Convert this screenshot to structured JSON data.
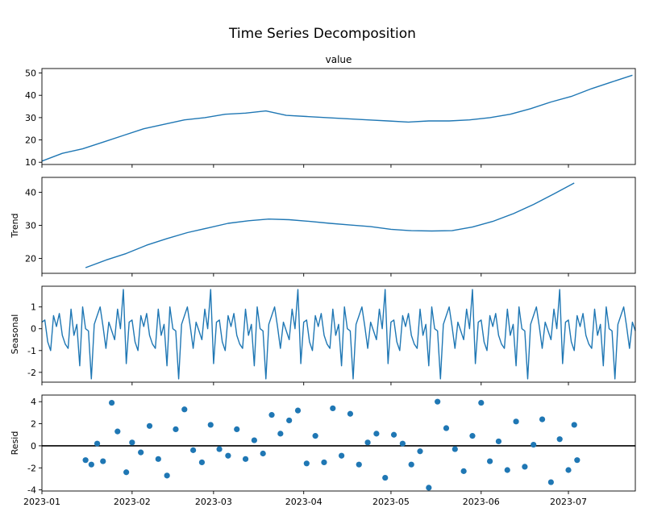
{
  "chart_data": {
    "type": "line",
    "title": "Time Series Decomposition",
    "x_type": "date",
    "x_range": [
      "2023-01-01",
      "2023-07-24"
    ],
    "x_ticks": [
      "2023-01",
      "2023-02",
      "2023-03",
      "2023-04",
      "2023-05",
      "2023-06",
      "2023-07"
    ],
    "colors": {
      "series": "#1f77b4",
      "zero_line": "#000000"
    },
    "panels": [
      {
        "name": "observed",
        "title": "value",
        "ylabel": "",
        "kind": "line",
        "ylim": [
          9,
          52
        ],
        "yticks": [
          10,
          20,
          30,
          40,
          50
        ],
        "x": [
          "2023-01-01",
          "2023-01-08",
          "2023-01-15",
          "2023-01-22",
          "2023-01-29",
          "2023-02-05",
          "2023-02-12",
          "2023-02-19",
          "2023-02-26",
          "2023-03-05",
          "2023-03-12",
          "2023-03-19",
          "2023-03-26",
          "2023-04-02",
          "2023-04-09",
          "2023-04-16",
          "2023-04-23",
          "2023-04-30",
          "2023-05-07",
          "2023-05-14",
          "2023-05-21",
          "2023-05-28",
          "2023-06-04",
          "2023-06-11",
          "2023-06-18",
          "2023-06-25",
          "2023-07-02",
          "2023-07-09",
          "2023-07-16",
          "2023-07-23"
        ],
        "y": [
          10.5,
          14,
          16,
          19,
          22,
          25,
          27,
          29,
          30,
          31.5,
          32,
          33,
          31,
          30.5,
          30,
          29.5,
          29,
          28.5,
          28,
          28.5,
          28.5,
          29,
          30,
          31.5,
          34,
          37,
          39.5,
          43,
          46,
          49
        ]
      },
      {
        "name": "trend",
        "title": "",
        "ylabel": "Trend",
        "kind": "line",
        "ylim": [
          15.5,
          44.5
        ],
        "yticks": [
          20,
          30,
          40
        ],
        "x": [
          "2023-01-16",
          "2023-01-23",
          "2023-01-30",
          "2023-02-06",
          "2023-02-13",
          "2023-02-20",
          "2023-02-27",
          "2023-03-06",
          "2023-03-13",
          "2023-03-20",
          "2023-03-27",
          "2023-04-03",
          "2023-04-10",
          "2023-04-17",
          "2023-04-24",
          "2023-05-01",
          "2023-05-08",
          "2023-05-15",
          "2023-05-22",
          "2023-05-29",
          "2023-06-05",
          "2023-06-12",
          "2023-06-19",
          "2023-06-26",
          "2023-07-03"
        ],
        "y": [
          17.2,
          19.5,
          21.5,
          24,
          26,
          27.8,
          29.2,
          30.6,
          31.4,
          31.9,
          31.7,
          31.2,
          30.6,
          30.1,
          29.6,
          28.8,
          28.4,
          28.3,
          28.4,
          29.5,
          31.2,
          33.5,
          36.3,
          39.5,
          42.8
        ]
      },
      {
        "name": "seasonal",
        "title": "",
        "ylabel": "Seasonal",
        "kind": "line",
        "ylim": [
          -2.45,
          1.95
        ],
        "yticks": [
          -2,
          -1,
          0,
          1
        ],
        "x": [
          "2023-01-01",
          "2023-01-02",
          "2023-01-03",
          "2023-01-04",
          "2023-01-05",
          "2023-01-06",
          "2023-01-07",
          "2023-01-08",
          "2023-01-09",
          "2023-01-10",
          "2023-01-11",
          "2023-01-12",
          "2023-01-13",
          "2023-01-14",
          "2023-01-15",
          "2023-01-16",
          "2023-01-17",
          "2023-01-18",
          "2023-01-19",
          "2023-01-20",
          "2023-01-21",
          "2023-01-22",
          "2023-01-23",
          "2023-01-24",
          "2023-01-25",
          "2023-01-26",
          "2023-01-27",
          "2023-01-28",
          "2023-01-29",
          "2023-01-30"
        ],
        "y": [
          0.3,
          0.4,
          -0.6,
          -1.0,
          0.6,
          0.1,
          0.7,
          -0.3,
          -0.7,
          -0.9,
          0.9,
          -0.3,
          0.2,
          -1.7,
          1.0,
          0.0,
          -0.1,
          -2.3,
          0.2,
          0.6,
          1.0,
          0.1,
          -0.9,
          0.3,
          -0.1,
          -0.5,
          0.9,
          0.0,
          1.8,
          -1.6
        ]
      },
      {
        "name": "resid",
        "title": "",
        "ylabel": "Resid",
        "kind": "scatter",
        "ylim": [
          -4.1,
          4.6
        ],
        "yticks": [
          -4,
          -2,
          0,
          2,
          4
        ],
        "zero_line": true,
        "x": [
          "2023-01-16",
          "2023-01-18",
          "2023-01-20",
          "2023-01-22",
          "2023-01-25",
          "2023-01-27",
          "2023-01-30",
          "2023-02-01",
          "2023-02-04",
          "2023-02-07",
          "2023-02-10",
          "2023-02-13",
          "2023-02-16",
          "2023-02-19",
          "2023-02-22",
          "2023-02-25",
          "2023-02-28",
          "2023-03-03",
          "2023-03-06",
          "2023-03-09",
          "2023-03-12",
          "2023-03-15",
          "2023-03-18",
          "2023-03-21",
          "2023-03-24",
          "2023-03-27",
          "2023-03-30",
          "2023-04-02",
          "2023-04-05",
          "2023-04-08",
          "2023-04-11",
          "2023-04-14",
          "2023-04-17",
          "2023-04-20",
          "2023-04-23",
          "2023-04-26",
          "2023-04-29",
          "2023-05-02",
          "2023-05-05",
          "2023-05-08",
          "2023-05-11",
          "2023-05-14",
          "2023-05-17",
          "2023-05-20",
          "2023-05-23",
          "2023-05-26",
          "2023-05-29",
          "2023-06-01",
          "2023-06-04",
          "2023-06-07",
          "2023-06-10",
          "2023-06-13",
          "2023-06-16",
          "2023-06-19",
          "2023-06-22",
          "2023-06-25",
          "2023-06-28",
          "2023-07-01",
          "2023-07-03",
          "2023-07-04"
        ],
        "y": [
          -1.3,
          -1.7,
          0.2,
          -1.4,
          3.9,
          1.3,
          -2.4,
          0.3,
          -0.6,
          1.8,
          -1.2,
          -2.7,
          1.5,
          3.3,
          -0.4,
          -1.5,
          1.9,
          -0.3,
          -0.9,
          1.5,
          -1.2,
          0.5,
          -0.7,
          2.8,
          1.1,
          2.3,
          3.2,
          -1.6,
          0.9,
          -1.5,
          3.4,
          -0.9,
          2.9,
          -1.7,
          0.3,
          1.1,
          -2.9,
          1.0,
          0.2,
          -1.7,
          -0.5,
          -3.8,
          4.0,
          1.6,
          -0.3,
          -2.3,
          0.9,
          3.9,
          -1.4,
          0.4,
          -2.2,
          2.2,
          -1.9,
          0.1,
          2.4,
          -3.3,
          0.6,
          -2.2,
          1.9,
          -1.3
        ]
      }
    ]
  }
}
